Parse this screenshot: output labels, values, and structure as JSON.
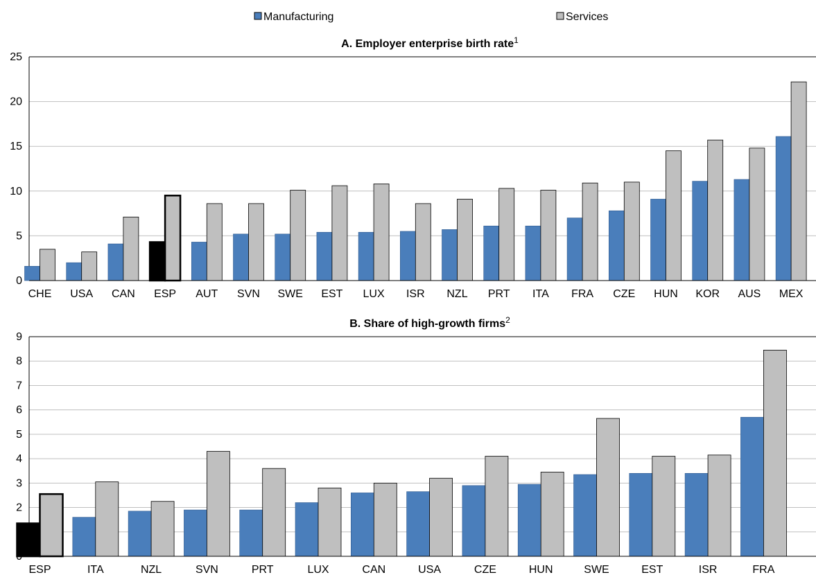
{
  "legend": {
    "manufacturing_label": "Manufacturing",
    "services_label": "Services"
  },
  "colors": {
    "manufacturing": "#4a7ebb",
    "services": "#bfbfbf",
    "highlight_manufacturing": "#000000",
    "highlight_services": "#bfbfbf",
    "gridline": "#bfbfbf",
    "axis": "#000000"
  },
  "chart_data": [
    {
      "type": "bar",
      "title": "A. Employer enterprise birth rate",
      "title_superscript": "1",
      "xlabel": "",
      "ylabel": "",
      "ylim": [
        0,
        25
      ],
      "yticks": [
        0,
        5,
        10,
        15,
        20,
        25
      ],
      "grid": true,
      "legend_position": "top",
      "highlight_category": "ESP",
      "categories": [
        "CHE",
        "USA",
        "CAN",
        "ESP",
        "AUT",
        "SVN",
        "SWE",
        "EST",
        "LUX",
        "ISR",
        "NZL",
        "PRT",
        "ITA",
        "FRA",
        "CZE",
        "HUN",
        "KOR",
        "AUS",
        "MEX"
      ],
      "series": [
        {
          "name": "Manufacturing",
          "values": [
            1.6,
            2.0,
            4.1,
            4.3,
            4.3,
            5.2,
            5.2,
            5.4,
            5.4,
            5.5,
            5.7,
            6.1,
            6.1,
            7.0,
            7.8,
            9.1,
            11.1,
            11.3,
            16.1
          ]
        },
        {
          "name": "Services",
          "values": [
            3.5,
            3.2,
            7.1,
            9.5,
            8.6,
            8.6,
            10.1,
            10.6,
            10.8,
            8.6,
            9.1,
            10.3,
            10.1,
            10.9,
            11.0,
            14.5,
            15.7,
            14.8,
            22.2
          ]
        }
      ]
    },
    {
      "type": "bar",
      "title": "B. Share of high-growth firms",
      "title_superscript": "2",
      "xlabel": "",
      "ylabel": "",
      "ylim": [
        0,
        9
      ],
      "yticks": [
        0,
        1,
        2,
        3,
        4,
        5,
        6,
        7,
        8,
        9
      ],
      "grid": true,
      "highlight_category": "ESP",
      "categories": [
        "ESP",
        "ITA",
        "NZL",
        "SVN",
        "PRT",
        "LUX",
        "CAN",
        "USA",
        "CZE",
        "HUN",
        "SWE",
        "EST",
        "ISR",
        "FRA"
      ],
      "series": [
        {
          "name": "Manufacturing",
          "values": [
            1.35,
            1.6,
            1.85,
            1.9,
            1.9,
            2.2,
            2.6,
            2.65,
            2.9,
            2.95,
            3.35,
            3.4,
            3.4,
            5.7
          ]
        },
        {
          "name": "Services",
          "values": [
            2.55,
            3.05,
            2.25,
            4.3,
            3.6,
            2.8,
            3.0,
            3.2,
            4.1,
            3.45,
            5.65,
            4.1,
            4.15,
            8.45
          ]
        }
      ]
    }
  ]
}
